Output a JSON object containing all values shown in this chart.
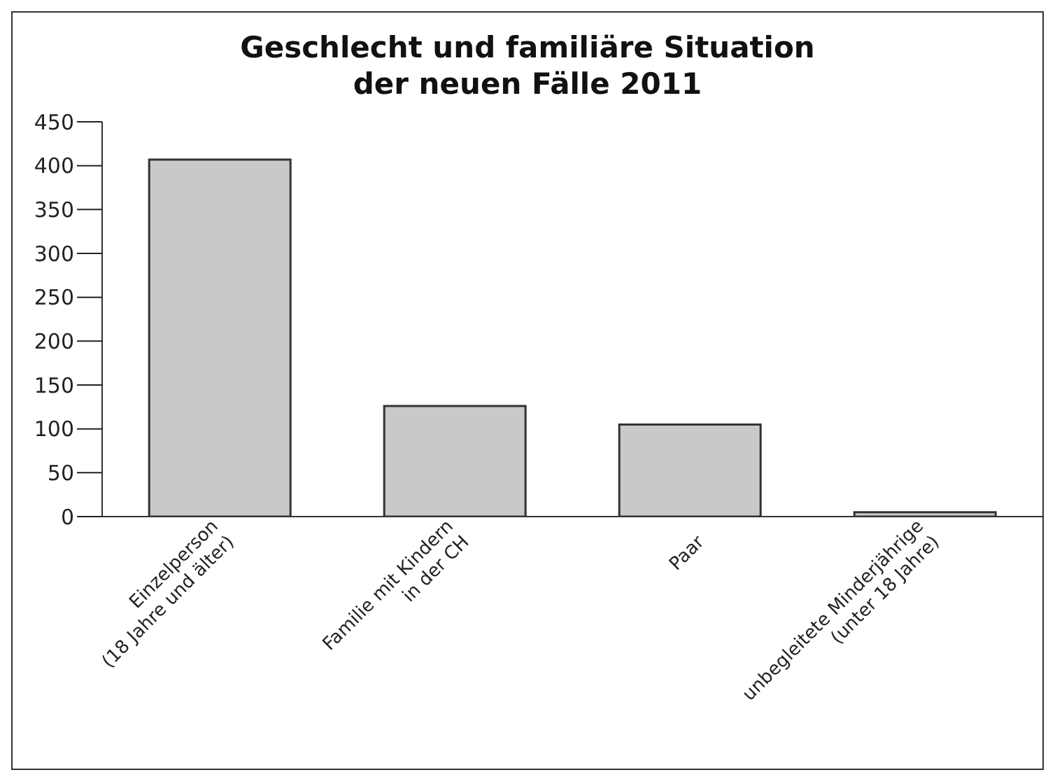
{
  "chart_data": {
    "type": "bar",
    "title": "Geschlecht und familiäre Situation\nder neuen Fälle 2011",
    "categories": [
      "Einzelperson\n(18 Jahre und älter)",
      "Familie mit Kindern\nin der CH",
      "Paar",
      "unbegleitete Minderjährige\n(unter 18 Jahre)"
    ],
    "values": [
      407,
      126,
      105,
      5
    ],
    "color": "#c8c9cb",
    "ylim": [
      0,
      450
    ],
    "yticks": [
      0,
      50,
      100,
      150,
      200,
      250,
      300,
      350,
      400,
      450
    ],
    "grid": false,
    "legend": false
  }
}
